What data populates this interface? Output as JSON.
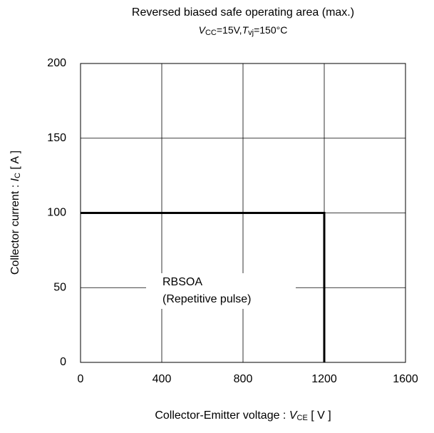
{
  "chart_data": {
    "type": "line",
    "title": "Reversed biased safe operating area (max.)",
    "subtitle": [
      "V",
      "CC",
      "=15V,",
      "T",
      "vj",
      "=150°C"
    ],
    "x_label": [
      "Collector-Emitter voltage : ",
      "V",
      "CE",
      " [ V ]"
    ],
    "y_label": [
      "Collector current : ",
      "I",
      "C",
      " [ A ]"
    ],
    "annotation": [
      "RBSOA",
      "(Repetitive pulse)"
    ],
    "x": [
      0,
      1200,
      1200
    ],
    "series": [
      {
        "name": "RBSOA",
        "color": "#000000",
        "values": [
          100,
          100,
          0
        ]
      }
    ],
    "xlim": [
      0,
      1600
    ],
    "xticks": [
      0,
      400,
      800,
      1200,
      1600
    ],
    "ylim": [
      0,
      200
    ],
    "yticks": [
      0,
      50,
      100,
      150,
      200
    ],
    "grid": true
  }
}
